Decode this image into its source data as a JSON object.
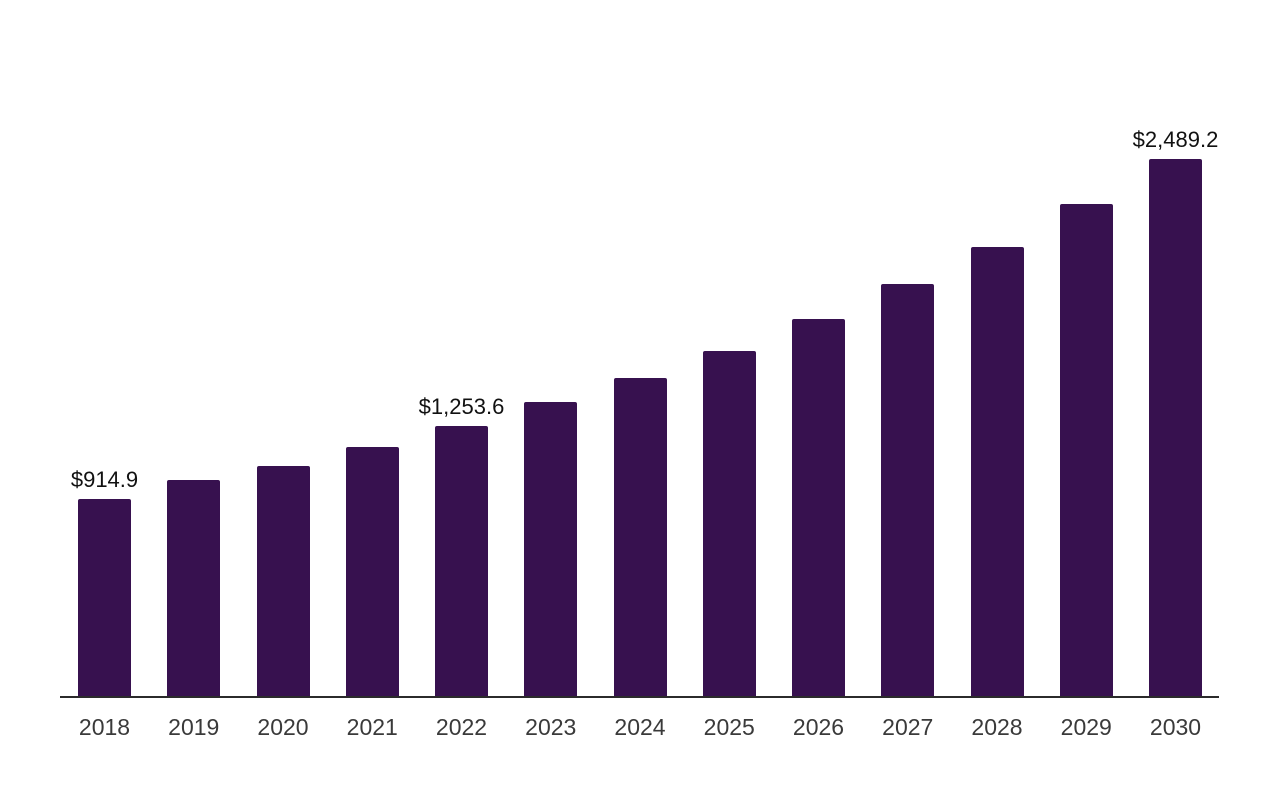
{
  "chart_data": {
    "type": "bar",
    "title": "",
    "xlabel": "",
    "ylabel": "",
    "categories": [
      "2018",
      "2019",
      "2020",
      "2021",
      "2022",
      "2023",
      "2024",
      "2025",
      "2026",
      "2027",
      "2028",
      "2029",
      "2030"
    ],
    "values": [
      914.9,
      1002,
      1067,
      1159,
      1253.6,
      1363,
      1474,
      1603,
      1747,
      1909,
      2084,
      2279,
      2489.2
    ],
    "data_labels": [
      "$914.9",
      null,
      null,
      null,
      "$1,253.6",
      null,
      null,
      null,
      null,
      null,
      null,
      null,
      "$2,489.2"
    ],
    "ylim": [
      0,
      2700
    ],
    "grid": false,
    "legend": false,
    "y_axis_visible": false,
    "x_axis_visible": true,
    "bar_color": "#37114f",
    "axis_line_color": "#2b2b2b",
    "data_label_color": "#111111",
    "tick_label_color": "#3a3a3a",
    "background_color": "#ffffff"
  }
}
